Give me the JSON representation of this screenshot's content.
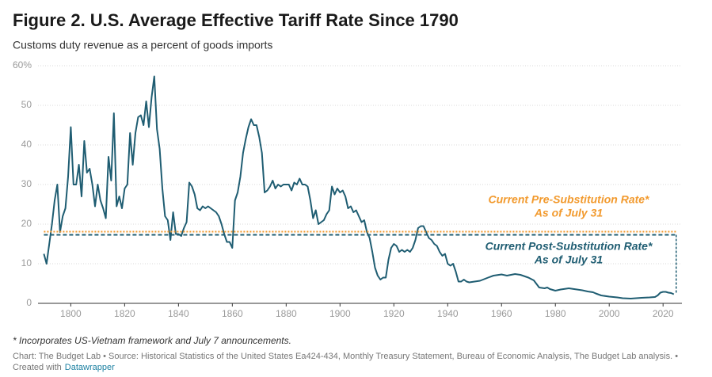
{
  "chart_data": {
    "type": "line",
    "title": "Figure 2. U.S. Average Effective Tariff Rate Since 1790",
    "subtitle": "Customs duty revenue as a percent of goods imports",
    "footnote": "* Incorporates US-Vietnam framework and July 7 announcements.",
    "source": "Chart: The Budget Lab • Source: Historical Statistics of the United States Ea424-434, Monthly Treasury Statement, Bureau of Economic Analysis, The Budget Lab analysis. •",
    "credit": "Created with",
    "credit_link": "Datawrapper",
    "xlim": [
      1789,
      2027
    ],
    "xticks": [
      1800,
      1820,
      1840,
      1860,
      1880,
      1900,
      1920,
      1940,
      1960,
      1980,
      2000,
      2020
    ],
    "ylim": [
      0,
      60
    ],
    "yticks": [
      0,
      10,
      20,
      30,
      40,
      50,
      {
        "value": 60,
        "label": "60%"
      }
    ],
    "grid": true,
    "series": [
      {
        "color": "#1f5d72",
        "x": [
          1790,
          1791,
          1792,
          1793,
          1794,
          1795,
          1796,
          1797,
          1798,
          1799,
          1800,
          1801,
          1802,
          1803,
          1804,
          1805,
          1806,
          1807,
          1808,
          1809,
          1810,
          1811,
          1812,
          1813,
          1814,
          1815,
          1816,
          1817,
          1818,
          1819,
          1820,
          1821,
          1822,
          1823,
          1824,
          1825,
          1826,
          1827,
          1828,
          1829,
          1830,
          1831,
          1832,
          1833,
          1834,
          1835,
          1836,
          1837,
          1838,
          1839,
          1840,
          1841,
          1842,
          1843,
          1844,
          1845,
          1846,
          1847,
          1848,
          1849,
          1850,
          1851,
          1852,
          1853,
          1854,
          1855,
          1856,
          1857,
          1858,
          1859,
          1860,
          1861,
          1862,
          1863,
          1864,
          1865,
          1866,
          1867,
          1868,
          1869,
          1870,
          1871,
          1872,
          1873,
          1874,
          1875,
          1876,
          1877,
          1878,
          1879,
          1880,
          1881,
          1882,
          1883,
          1884,
          1885,
          1886,
          1887,
          1888,
          1889,
          1890,
          1891,
          1892,
          1893,
          1894,
          1895,
          1896,
          1897,
          1898,
          1899,
          1900,
          1901,
          1902,
          1903,
          1904,
          1905,
          1906,
          1907,
          1908,
          1909,
          1910,
          1911,
          1912,
          1913,
          1914,
          1915,
          1916,
          1917,
          1918,
          1919,
          1920,
          1921,
          1922,
          1923,
          1924,
          1925,
          1926,
          1927,
          1928,
          1929,
          1930,
          1931,
          1932,
          1933,
          1934,
          1935,
          1936,
          1937,
          1938,
          1939,
          1940,
          1941,
          1942,
          1943,
          1944,
          1945,
          1946,
          1947,
          1948,
          1950,
          1952,
          1955,
          1957,
          1960,
          1962,
          1965,
          1967,
          1970,
          1972,
          1974,
          1976,
          1977,
          1978,
          1980,
          1982,
          1985,
          1988,
          1990,
          1992,
          1994,
          1995,
          1997,
          2000,
          2003,
          2005,
          2008,
          2010,
          2012,
          2015,
          2017,
          2018,
          2019,
          2020,
          2021,
          2022,
          2023,
          2024
        ],
        "values": [
          12.5,
          10,
          15,
          20,
          26,
          30,
          18,
          22,
          24,
          32,
          44.5,
          30,
          30,
          35,
          27,
          41,
          33,
          34,
          30,
          24.5,
          30,
          26,
          24,
          21.5,
          37,
          31,
          48,
          24.5,
          27,
          24,
          29,
          30,
          43,
          35,
          43,
          47,
          47.5,
          45,
          51,
          44.5,
          52,
          57.3,
          44,
          39,
          29,
          22,
          21,
          16,
          23,
          17.5,
          17.5,
          17,
          19,
          20.5,
          30.5,
          29.5,
          27.5,
          24,
          23.5,
          24.5,
          24,
          24.5,
          24,
          23.5,
          23,
          22,
          20,
          17.5,
          15.5,
          15.5,
          14,
          26,
          28,
          32,
          38,
          41.5,
          44.5,
          46.5,
          45,
          45,
          42,
          38,
          28,
          28.5,
          29.5,
          31,
          29,
          30,
          29.5,
          30,
          30,
          30,
          28.5,
          30.5,
          30,
          31.5,
          30,
          30,
          29.5,
          26,
          21.5,
          23.5,
          20,
          20.5,
          21,
          22.5,
          23.5,
          29.5,
          27.5,
          29,
          28,
          28.5,
          27,
          24,
          24.5,
          23,
          23.5,
          22,
          20.5,
          21,
          18,
          16.5,
          13,
          9,
          7,
          6,
          6.5,
          6.5,
          11,
          14,
          15,
          14.5,
          13,
          13.5,
          13,
          13.5,
          13,
          14,
          16,
          19,
          19.5,
          19.5,
          18,
          16.5,
          16,
          15,
          14.5,
          13,
          12,
          12.5,
          10,
          9.5,
          10,
          8,
          5.5,
          5.5,
          6,
          5.5,
          5.3,
          5.5,
          5.7,
          6.5,
          7,
          7.3,
          7,
          7.4,
          7.2,
          6.5,
          5.8,
          4,
          3.8,
          4,
          3.6,
          3.2,
          3.5,
          3.8,
          3.5,
          3.3,
          3,
          2.8,
          2.5,
          2,
          1.7,
          1.5,
          1.3,
          1.2,
          1.3,
          1.4,
          1.5,
          1.6,
          2,
          2.7,
          2.9,
          2.9,
          2.7,
          2.6,
          2.3
        ]
      }
    ],
    "reference_lines": [
      {
        "label": [
          "Current Pre-Substitution Rate*",
          "As of July 31"
        ],
        "value": 18.1,
        "color": "#f29a2e",
        "style": "dotted"
      },
      {
        "label": [
          "Current Post-Substitution Rate*",
          "As of July 31"
        ],
        "value": 17.3,
        "color": "#1f5d72",
        "style": "dashed"
      }
    ]
  }
}
